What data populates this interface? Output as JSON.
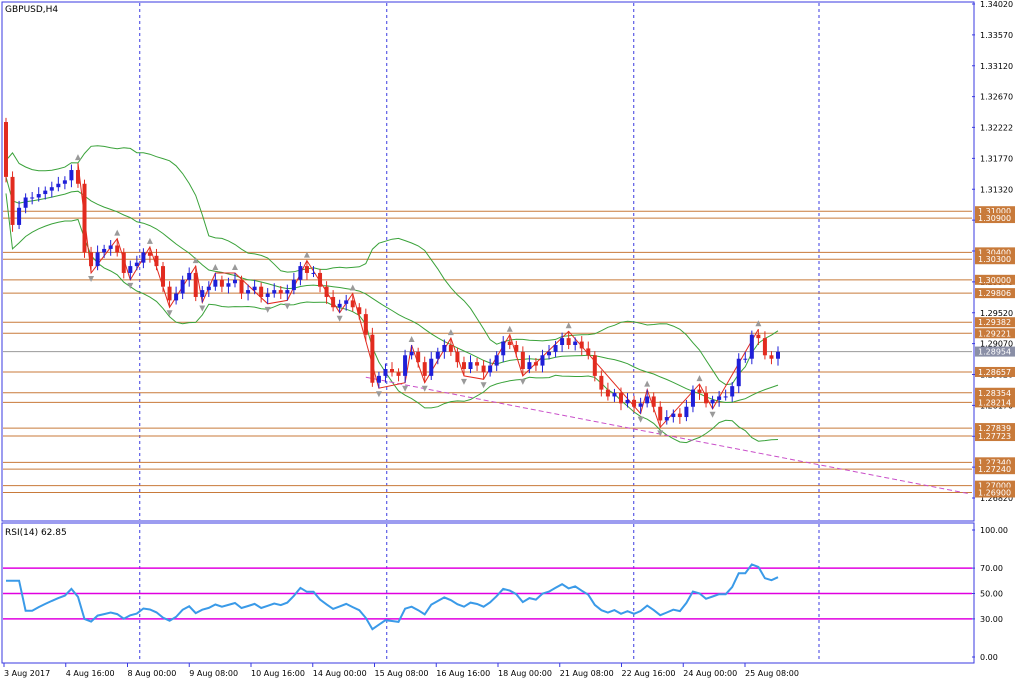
{
  "symbol_label": "GBPUSD,H4",
  "indicator_label": "RSI(14) 62.85",
  "colors": {
    "bull": "#1f1fd8",
    "bear": "#e22b1f",
    "hline": "#c87a3a",
    "bands": "#3aa23a",
    "zigzag": "#e22b1f",
    "trendline": "#c94fc9",
    "rsi": "#3a9ae8",
    "rsi_levels": "#e000e0",
    "separator": "#3a3ae0",
    "axis": "#3a3ae0",
    "current_price_box": "#8a8fa6"
  },
  "chart_data": [
    {
      "type": "candlestick",
      "title": "GBPUSD,H4",
      "ylim": [
        1.2682,
        1.3402
      ],
      "y_ticks": [
        "1.34020",
        "1.33570",
        "1.33120",
        "1.32670",
        "1.32222",
        "1.31770",
        "1.31320",
        "1.30870",
        "1.30420",
        "1.29970",
        "1.29520",
        "1.29070",
        "1.28620",
        "1.28170",
        "1.27720",
        "1.27270",
        "1.26820"
      ],
      "x_ticks": [
        "3 Aug 2017",
        "4 Aug 16:00",
        "8 Aug 00:00",
        "9 Aug 08:00",
        "10 Aug 16:00",
        "14 Aug 00:00",
        "15 Aug 08:00",
        "16 Aug 16:00",
        "18 Aug 00:00",
        "21 Aug 08:00",
        "22 Aug 16:00",
        "24 Aug 00:00",
        "25 Aug 08:00"
      ],
      "day_separators": [
        "4 Aug 16:00",
        "14 Aug 00:00",
        "21 Aug 08:00",
        "25 Aug 08:00"
      ],
      "close": [
        1.315,
        1.308,
        1.3105,
        1.312,
        1.312,
        1.3125,
        1.313,
        1.3135,
        1.314,
        1.3145,
        1.316,
        1.314,
        1.304,
        1.302,
        1.304,
        1.3045,
        1.305,
        1.304,
        1.301,
        1.302,
        1.3025,
        1.304,
        1.3035,
        1.302,
        1.299,
        1.297,
        1.298,
        1.3,
        1.301,
        1.2975,
        1.2985,
        1.299,
        1.3,
        1.299,
        1.2995,
        1.3,
        1.298,
        1.2985,
        1.299,
        1.2975,
        1.298,
        1.2985,
        1.298,
        1.2985,
        1.3,
        1.302,
        1.301,
        1.301,
        1.299,
        1.2975,
        1.296,
        1.2965,
        1.297,
        1.296,
        1.295,
        1.292,
        1.285,
        1.286,
        1.287,
        1.2865,
        1.286,
        1.289,
        1.2895,
        1.288,
        1.286,
        1.2885,
        1.2895,
        1.2905,
        1.2895,
        1.288,
        1.287,
        1.288,
        1.2875,
        1.2865,
        1.2875,
        1.289,
        1.291,
        1.2905,
        1.2895,
        1.287,
        1.288,
        1.2875,
        1.289,
        1.2895,
        1.2905,
        1.2915,
        1.2905,
        1.291,
        1.29,
        1.289,
        1.286,
        1.284,
        1.283,
        1.2835,
        1.282,
        1.2825,
        1.2815,
        1.282,
        1.283,
        1.2815,
        1.2795,
        1.28,
        1.2805,
        1.28,
        1.2815,
        1.284,
        1.2835,
        1.282,
        1.2825,
        1.283,
        1.283,
        1.2845,
        1.2885,
        1.2885,
        1.292,
        1.2915,
        1.289,
        1.2885,
        1.2895
      ]
    },
    {
      "type": "line",
      "title": "RSI(14) 62.85",
      "ylim": [
        0,
        100
      ],
      "y_ticks": [
        "100.00",
        "70.00",
        "50.00",
        "30.00",
        "0.00"
      ],
      "levels": [
        70,
        50,
        30
      ],
      "current": 62.85
    }
  ],
  "price_boxes": [
    {
      "value": 1.31,
      "label": "1.31000"
    },
    {
      "value": 1.309,
      "label": "1.30900"
    },
    {
      "value": 1.304,
      "label": "1.30400"
    },
    {
      "value": 1.303,
      "label": "1.30300"
    },
    {
      "value": 1.3,
      "label": "1.30000"
    },
    {
      "value": 1.29806,
      "label": "1.29806"
    },
    {
      "value": 1.29382,
      "label": "1.29382"
    },
    {
      "value": 1.29221,
      "label": "1.29221"
    },
    {
      "value": 1.28657,
      "label": "1.28657"
    },
    {
      "value": 1.28354,
      "label": "1.28354"
    },
    {
      "value": 1.28214,
      "label": "1.28214"
    },
    {
      "value": 1.27839,
      "label": "1.27839"
    },
    {
      "value": 1.27723,
      "label": "1.27723"
    },
    {
      "value": 1.2734,
      "label": "1.27340"
    },
    {
      "value": 1.2724,
      "label": "1.27240"
    },
    {
      "value": 1.27,
      "label": "1.27000"
    },
    {
      "value": 1.269,
      "label": "1.26900"
    }
  ],
  "current_price": {
    "value": 1.28954,
    "label": "1.28954"
  }
}
